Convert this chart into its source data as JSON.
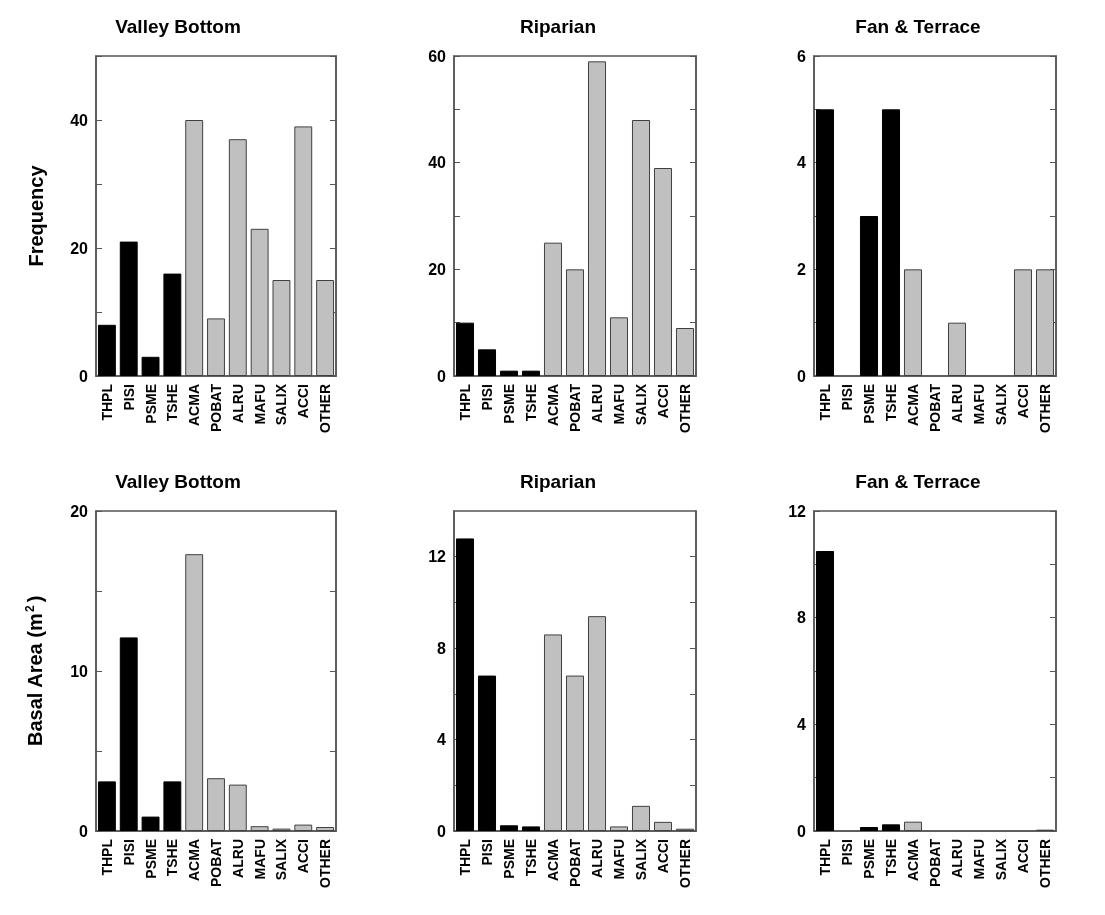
{
  "chart_data": [
    {
      "type": "bar",
      "title": "Valley Bottom",
      "ylabel": "Frequency",
      "categories": [
        "THPL",
        "PISI",
        "PSME",
        "TSHE",
        "ACMA",
        "POBAT",
        "ALRU",
        "MAFU",
        "SALIX",
        "ACCI",
        "OTHER"
      ],
      "values": [
        8,
        21,
        3,
        16,
        40,
        9,
        37,
        23,
        15,
        39,
        15
      ],
      "colors": [
        "#000000",
        "#000000",
        "#000000",
        "#000000",
        "#c0c0c0",
        "#c0c0c0",
        "#c0c0c0",
        "#c0c0c0",
        "#c0c0c0",
        "#c0c0c0",
        "#c0c0c0"
      ],
      "ylim": [
        0,
        50
      ],
      "yticks": [
        0,
        {
          "value": 10,
          "label": null
        },
        20,
        {
          "value": 30,
          "label": null
        },
        40,
        {
          "value": 50,
          "label": null
        }
      ]
    },
    {
      "type": "bar",
      "title": "Riparian",
      "categories": [
        "THPL",
        "PISI",
        "PSME",
        "TSHE",
        "ACMA",
        "POBAT",
        "ALRU",
        "MAFU",
        "SALIX",
        "ACCI",
        "OTHER"
      ],
      "values": [
        10,
        5,
        1,
        1,
        25,
        20,
        59,
        11,
        48,
        39,
        9
      ],
      "colors": [
        "#000000",
        "#000000",
        "#000000",
        "#000000",
        "#c0c0c0",
        "#c0c0c0",
        "#c0c0c0",
        "#c0c0c0",
        "#c0c0c0",
        "#c0c0c0",
        "#c0c0c0"
      ],
      "ylim": [
        0,
        60
      ],
      "yticks": [
        0,
        {
          "value": 10,
          "label": null
        },
        20,
        {
          "value": 30,
          "label": null
        },
        40,
        {
          "value": 50,
          "label": null
        },
        60
      ]
    },
    {
      "type": "bar",
      "title": "Fan & Terrace",
      "categories": [
        "THPL",
        "PISI",
        "PSME",
        "TSHE",
        "ACMA",
        "POBAT",
        "ALRU",
        "MAFU",
        "SALIX",
        "ACCI",
        "OTHER"
      ],
      "values": [
        5,
        0,
        3,
        5,
        2,
        0,
        1,
        0,
        0,
        2,
        2
      ],
      "colors": [
        "#000000",
        "#000000",
        "#000000",
        "#000000",
        "#c0c0c0",
        "#c0c0c0",
        "#c0c0c0",
        "#c0c0c0",
        "#c0c0c0",
        "#c0c0c0",
        "#c0c0c0"
      ],
      "ylim": [
        0,
        6
      ],
      "yticks": [
        0,
        {
          "value": 1,
          "label": null
        },
        2,
        {
          "value": 3,
          "label": null
        },
        4,
        {
          "value": 5,
          "label": null
        },
        6
      ]
    },
    {
      "type": "bar",
      "title": "Valley Bottom",
      "ylabel": "Basal Area (m$^{2}$)",
      "categories": [
        "THPL",
        "PISI",
        "PSME",
        "TSHE",
        "ACMA",
        "POBAT",
        "ALRU",
        "MAFU",
        "SALIX",
        "ACCI",
        "OTHER"
      ],
      "values": [
        3.1,
        12.1,
        0.9,
        3.1,
        17.3,
        3.3,
        2.9,
        0.3,
        0.15,
        0.4,
        0.25
      ],
      "colors": [
        "#000000",
        "#000000",
        "#000000",
        "#000000",
        "#c0c0c0",
        "#c0c0c0",
        "#c0c0c0",
        "#c0c0c0",
        "#c0c0c0",
        "#c0c0c0",
        "#c0c0c0"
      ],
      "ylim": [
        0,
        20
      ],
      "yticks": [
        0,
        {
          "value": 5,
          "label": null
        },
        10,
        {
          "value": 15,
          "label": null
        },
        20
      ]
    },
    {
      "type": "bar",
      "title": "Riparian",
      "categories": [
        "THPL",
        "PISI",
        "PSME",
        "TSHE",
        "ACMA",
        "POBAT",
        "ALRU",
        "MAFU",
        "SALIX",
        "ACCI",
        "OTHER"
      ],
      "values": [
        12.8,
        6.8,
        0.25,
        0.2,
        8.6,
        6.8,
        9.4,
        0.2,
        1.1,
        0.4,
        0.1
      ],
      "colors": [
        "#000000",
        "#000000",
        "#000000",
        "#000000",
        "#c0c0c0",
        "#c0c0c0",
        "#c0c0c0",
        "#c0c0c0",
        "#c0c0c0",
        "#c0c0c0",
        "#c0c0c0"
      ],
      "ylim": [
        0,
        14
      ],
      "yticks": [
        0,
        {
          "value": 2,
          "label": null
        },
        4,
        {
          "value": 6,
          "label": null
        },
        8,
        {
          "value": 10,
          "label": null
        },
        12
      ]
    },
    {
      "type": "bar",
      "title": "Fan & Terrace",
      "categories": [
        "THPL",
        "PISI",
        "PSME",
        "TSHE",
        "ACMA",
        "POBAT",
        "ALRU",
        "MAFU",
        "SALIX",
        "ACCI",
        "OTHER"
      ],
      "values": [
        10.5,
        0,
        0.15,
        0.25,
        0.35,
        0,
        0,
        0,
        0,
        0,
        0.05
      ],
      "colors": [
        "#000000",
        "#000000",
        "#000000",
        "#000000",
        "#c0c0c0",
        "#c0c0c0",
        "#c0c0c0",
        "#c0c0c0",
        "#c0c0c0",
        "#c0c0c0",
        "#c0c0c0"
      ],
      "ylim": [
        0,
        12
      ],
      "yticks": [
        0,
        {
          "value": 2,
          "label": null
        },
        4,
        {
          "value": 6,
          "label": null
        },
        8,
        {
          "value": 10,
          "label": null
        },
        12
      ]
    }
  ]
}
